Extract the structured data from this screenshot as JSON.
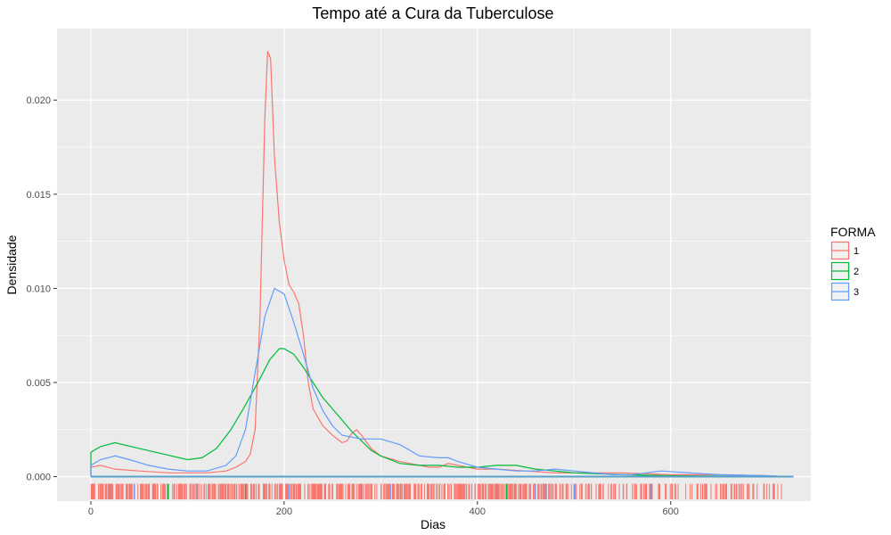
{
  "chart_data": {
    "type": "line",
    "title": "Tempo até a Cura da Tuberculose",
    "xlabel": "Dias",
    "ylabel": "Densidade",
    "xlim": [
      -35,
      745
    ],
    "ylim": [
      -0.0013,
      0.0238
    ],
    "x_ticks": [
      0,
      200,
      400,
      600
    ],
    "x_tick_labels": [
      "0",
      "200",
      "400",
      "600"
    ],
    "y_ticks": [
      0,
      0.005,
      0.01,
      0.015,
      0.02
    ],
    "y_tick_labels": [
      "0.000",
      "0.005",
      "0.010",
      "0.015",
      "0.020"
    ],
    "grid": true,
    "legend": {
      "title": "FORMA",
      "position": "right"
    },
    "colors": {
      "panel_bg": "#ebebeb",
      "grid": "#ffffff",
      "baseline": "#5aa0c8"
    },
    "series": [
      {
        "name": "1",
        "color": "#F8766D",
        "x": [
          0,
          10,
          25,
          50,
          80,
          100,
          120,
          140,
          150,
          160,
          165,
          170,
          175,
          180,
          183,
          186,
          190,
          195,
          200,
          205,
          210,
          215,
          220,
          225,
          230,
          240,
          250,
          260,
          265,
          270,
          275,
          280,
          290,
          300,
          320,
          340,
          350,
          360,
          370,
          380,
          400,
          420,
          450,
          480,
          500,
          550,
          600,
          650,
          700,
          710
        ],
        "y": [
          0.0005,
          0.0006,
          0.0004,
          0.0003,
          0.0002,
          0.0002,
          0.0002,
          0.0003,
          0.0005,
          0.0008,
          0.0012,
          0.0025,
          0.0085,
          0.019,
          0.0226,
          0.0222,
          0.017,
          0.0135,
          0.0115,
          0.0102,
          0.0098,
          0.0092,
          0.0075,
          0.005,
          0.0036,
          0.0027,
          0.0022,
          0.0018,
          0.0019,
          0.0023,
          0.0025,
          0.0022,
          0.0015,
          0.0011,
          0.0008,
          0.0006,
          0.0005,
          0.0005,
          0.0007,
          0.0006,
          0.0004,
          0.0004,
          0.0003,
          0.0002,
          0.0002,
          0.0002,
          0.0001,
          0.0001,
          5e-05,
          3e-05
        ]
      },
      {
        "name": "2",
        "color": "#00BA38",
        "x": [
          0,
          10,
          25,
          50,
          75,
          100,
          115,
          130,
          145,
          160,
          175,
          185,
          195,
          200,
          210,
          220,
          230,
          240,
          250,
          260,
          270,
          280,
          290,
          300,
          320,
          340,
          360,
          380,
          400,
          420,
          440,
          460,
          480,
          500,
          550,
          600,
          650,
          700,
          710
        ],
        "y": [
          0.0013,
          0.0016,
          0.0018,
          0.0015,
          0.0012,
          0.0009,
          0.001,
          0.0015,
          0.0025,
          0.0038,
          0.0052,
          0.0062,
          0.0068,
          0.0068,
          0.0065,
          0.0058,
          0.005,
          0.0042,
          0.0036,
          0.003,
          0.0024,
          0.0019,
          0.0014,
          0.0011,
          0.0007,
          0.0006,
          0.0006,
          0.0005,
          0.0005,
          0.0006,
          0.0006,
          0.0004,
          0.0003,
          0.0002,
          0.0001,
          5e-05,
          3e-05,
          2e-05,
          2e-05
        ]
      },
      {
        "name": "3",
        "color": "#619CFF",
        "x": [
          0,
          10,
          25,
          40,
          60,
          80,
          100,
          120,
          140,
          150,
          160,
          170,
          180,
          190,
          200,
          210,
          220,
          230,
          240,
          250,
          260,
          280,
          300,
          320,
          340,
          360,
          370,
          380,
          400,
          420,
          440,
          460,
          480,
          500,
          540,
          560,
          590,
          620,
          650,
          700,
          710
        ],
        "y": [
          0.0006,
          0.0009,
          0.0011,
          0.0009,
          0.0006,
          0.0004,
          0.0003,
          0.0003,
          0.0006,
          0.0011,
          0.0025,
          0.0055,
          0.0085,
          0.01,
          0.0097,
          0.0082,
          0.0065,
          0.0047,
          0.0035,
          0.0027,
          0.0022,
          0.002,
          0.002,
          0.0017,
          0.0011,
          0.001,
          0.001,
          0.0008,
          0.0005,
          0.0004,
          0.0003,
          0.0003,
          0.0004,
          0.0003,
          0.0001,
          0.0001,
          0.0003,
          0.0002,
          0.0001,
          5e-05,
          3e-05
        ]
      }
    ]
  }
}
